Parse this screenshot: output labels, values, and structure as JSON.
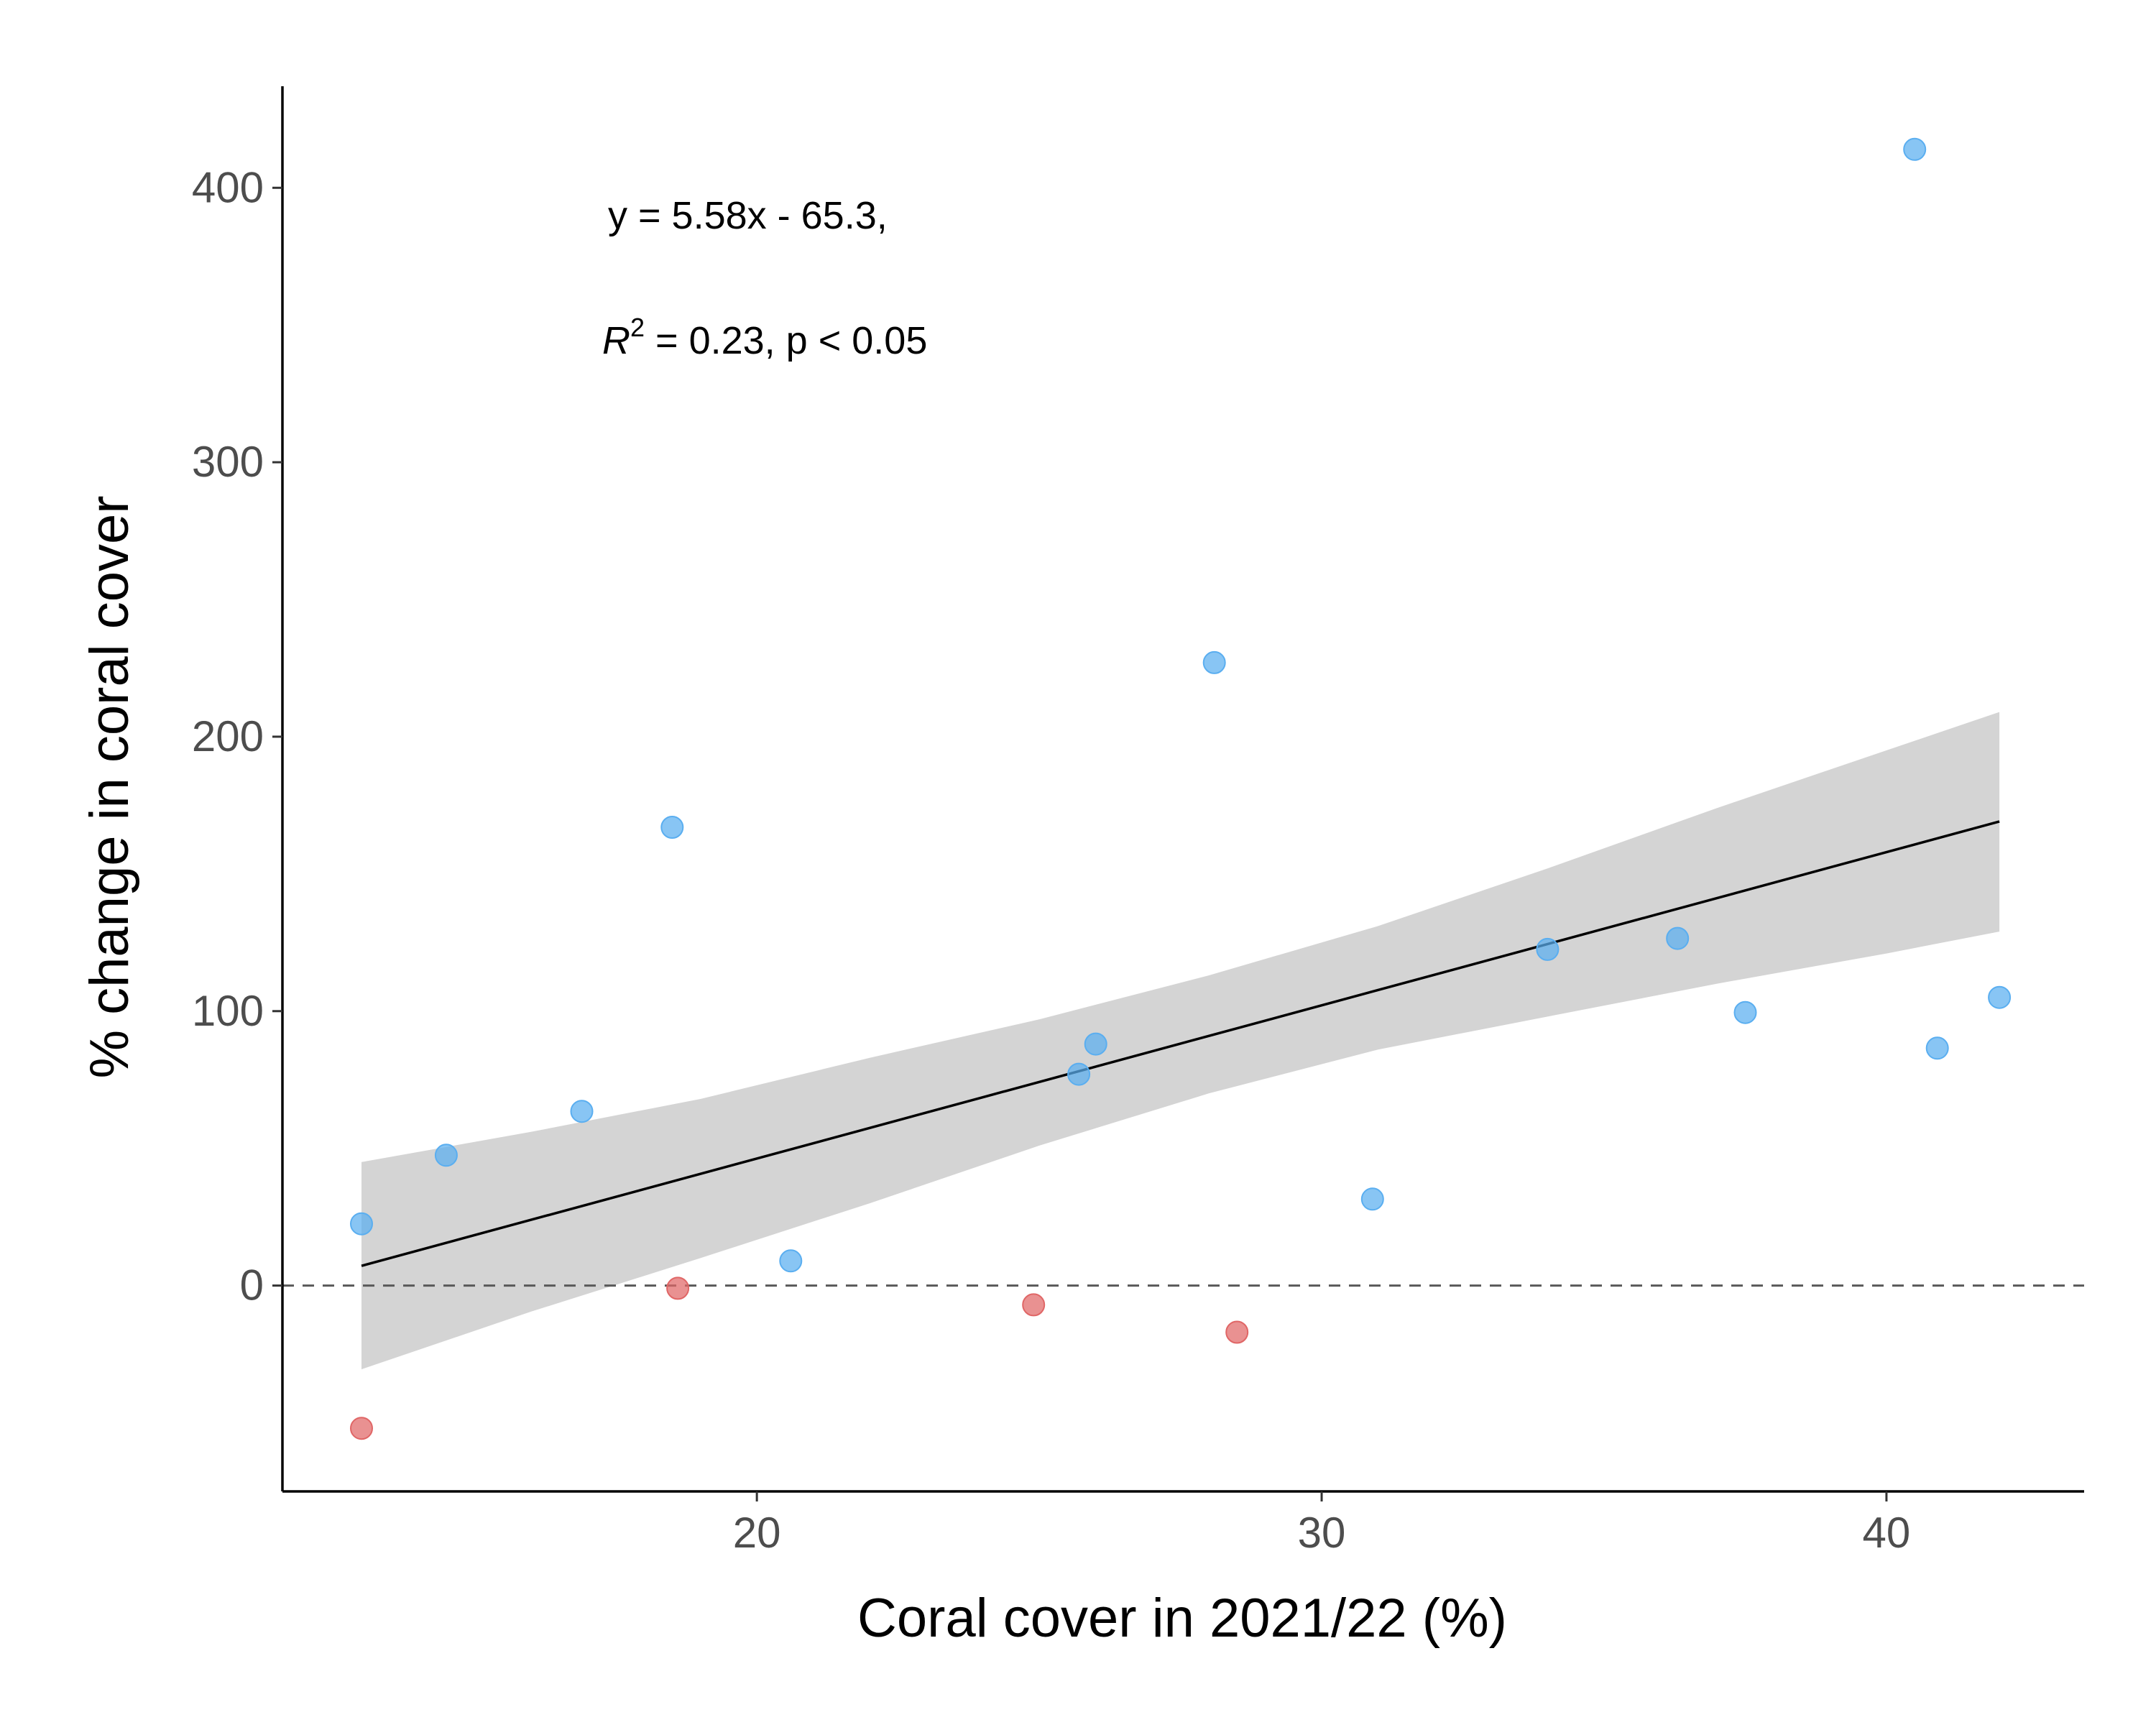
{
  "chart_data": {
    "type": "scatter",
    "title": "",
    "xlabel": "Coral cover in 2021/22 (%)",
    "ylabel": "% change in coral cover",
    "xlim": [
      11.6,
      43.5
    ],
    "ylim": [
      -75,
      437
    ],
    "x_ticks": [
      20,
      30,
      40
    ],
    "y_ticks": [
      0,
      100,
      200,
      300,
      400
    ],
    "grid": false,
    "reference_line": {
      "y": 0,
      "style": "dashed",
      "color": "#595959"
    },
    "colors": {
      "increase": "#5aaef0",
      "decrease": "#e06666",
      "trend_line": "#000000",
      "confidence_band": "#d4d4d4"
    },
    "points": [
      {
        "x": 13.0,
        "y": 22.5,
        "group": "increase"
      },
      {
        "x": 14.5,
        "y": 47.5,
        "group": "increase"
      },
      {
        "x": 16.9,
        "y": 63.5,
        "group": "increase"
      },
      {
        "x": 18.5,
        "y": 167.0,
        "group": "increase"
      },
      {
        "x": 20.6,
        "y": 9.0,
        "group": "increase"
      },
      {
        "x": 25.7,
        "y": 77.0,
        "group": "increase"
      },
      {
        "x": 26.0,
        "y": 88.0,
        "group": "increase"
      },
      {
        "x": 28.1,
        "y": 227.0,
        "group": "increase"
      },
      {
        "x": 30.9,
        "y": 31.5,
        "group": "increase"
      },
      {
        "x": 34.0,
        "y": 122.5,
        "group": "increase"
      },
      {
        "x": 36.3,
        "y": 126.5,
        "group": "increase"
      },
      {
        "x": 37.5,
        "y": 99.5,
        "group": "increase"
      },
      {
        "x": 40.5,
        "y": 414.0,
        "group": "increase"
      },
      {
        "x": 40.9,
        "y": 86.5,
        "group": "increase"
      },
      {
        "x": 42.0,
        "y": 105.0,
        "group": "increase"
      },
      {
        "x": 13.0,
        "y": -52.0,
        "group": "decrease"
      },
      {
        "x": 18.6,
        "y": -1.0,
        "group": "decrease"
      },
      {
        "x": 24.9,
        "y": -7.0,
        "group": "decrease"
      },
      {
        "x": 28.5,
        "y": -17.0,
        "group": "decrease"
      }
    ],
    "trend_line": {
      "x": [
        13.0,
        42.0
      ],
      "y": [
        7.2,
        169.1
      ]
    },
    "confidence_band": [
      {
        "x": 13.0,
        "lower": -30.5,
        "upper": 45.0
      },
      {
        "x": 16.0,
        "lower": -9.5,
        "upper": 56.0
      },
      {
        "x": 19.0,
        "lower": 10.0,
        "upper": 68.0
      },
      {
        "x": 22.0,
        "lower": 30.0,
        "upper": 83.0
      },
      {
        "x": 25.0,
        "lower": 51.0,
        "upper": 97.0
      },
      {
        "x": 28.0,
        "lower": 70.0,
        "upper": 113.0
      },
      {
        "x": 31.0,
        "lower": 86.0,
        "upper": 131.0
      },
      {
        "x": 34.0,
        "lower": 98.0,
        "upper": 152.0
      },
      {
        "x": 37.0,
        "lower": 110.0,
        "upper": 174.0
      },
      {
        "x": 40.0,
        "lower": 121.0,
        "upper": 195.0
      },
      {
        "x": 42.0,
        "lower": 129.0,
        "upper": 209.0
      }
    ],
    "annotations": {
      "equation": "y = 5.58x - 65.3,",
      "r2_symbol": "R",
      "r2_exponent": "2",
      "r2_rest": " = 0.23, p < 0.05"
    }
  }
}
